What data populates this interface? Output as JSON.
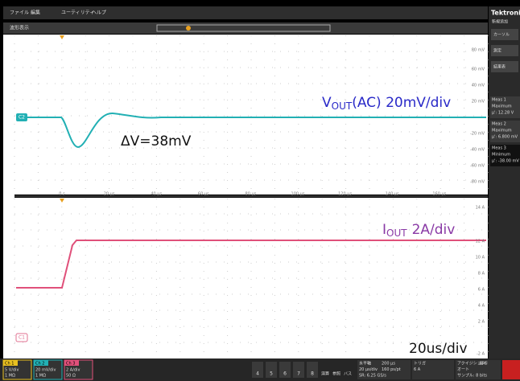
{
  "menu": [
    "ファイル",
    "編集",
    "ユーティリティ",
    "ヘルプ"
  ],
  "tab": "波形表示",
  "upper_plot": {
    "y_labels": [
      "80 mV",
      "60 mV",
      "40 mV",
      "20 mV",
      "-20 mV",
      "-40 mV",
      "-60 mV",
      "-80 mV"
    ],
    "x_labels": [
      "0 s",
      "20 µs",
      "40 µs",
      "60 µs",
      "80 µs",
      "100 µs",
      "120 µs",
      "140 µs",
      "160 µs"
    ],
    "marker": "C2"
  },
  "lower_plot": {
    "y_labels": [
      "14 A",
      "12 A",
      "10 A",
      "8 A",
      "6 A",
      "4 A",
      "2 A",
      "-2 A"
    ],
    "marker": "C1"
  },
  "annotations": {
    "vout": {
      "v": "V",
      "sub": "OUT",
      "rest": "(AC) 20mV/div"
    },
    "delta": "ΔV=38mV",
    "iout": {
      "i": "I",
      "sub": "OUT",
      "rest": "2A/div"
    },
    "timebase": "20us/div"
  },
  "side_panel": {
    "brand": "Tektronix",
    "sub": "新規追加",
    "buttons": [
      "カーソル",
      "測定",
      "結果表"
    ],
    "meas": [
      {
        "name": "Meas 1",
        "kind": "Maximum",
        "value": "µ': 12.28 V"
      },
      {
        "name": "Meas 2",
        "kind": "Maximum",
        "value": "µ': 6.800 mV"
      },
      {
        "name": "Meas 3",
        "kind": "Minimum",
        "value": "µ': -38.00 mV"
      }
    ]
  },
  "bottom_bar": {
    "channels": [
      {
        "name": "Ch 1",
        "scale": "5 V/div",
        "imp": "1 MΩ"
      },
      {
        "name": "Ch 2",
        "scale": "20 mV/div",
        "imp": "1 MΩ"
      },
      {
        "name": "Ch 3",
        "scale": "2 A/div",
        "imp": "50 Ω"
      }
    ],
    "more": [
      "4",
      "5",
      "6",
      "7",
      "8"
    ],
    "extra": [
      "演算",
      "参照",
      "バス"
    ],
    "horizontal": {
      "title": "水平軸",
      "scale": "20 µs/div",
      "length": "200 µs",
      "sr": "SR: 6.25 GS/s",
      "pt": "160 ps/pt"
    },
    "trigger": {
      "title": "トリガ",
      "level": "6 A"
    },
    "acq": {
      "title": "アクイジション",
      "mode": "オート",
      "analysis": "解析",
      "bits": "サンプル: 8 bits"
    }
  }
}
